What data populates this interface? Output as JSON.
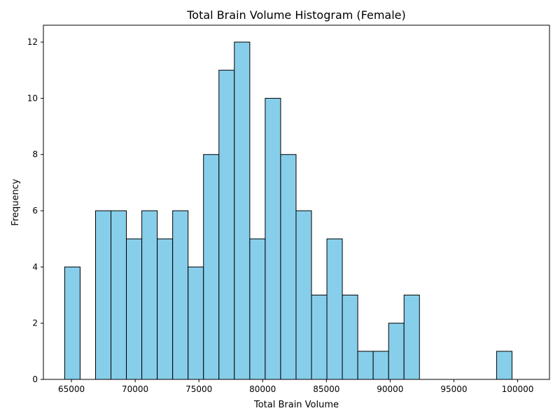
{
  "chart_data": {
    "type": "bar",
    "title": "Total Brain Volume Histogram (Female)",
    "xlabel": "Total Brain Volume",
    "ylabel": "Frequency",
    "xlim": [
      62800,
      102500
    ],
    "ylim": [
      0,
      12.6
    ],
    "x_ticks": [
      65000,
      70000,
      75000,
      80000,
      85000,
      90000,
      95000,
      100000
    ],
    "y_ticks": [
      0,
      2,
      4,
      6,
      8,
      10,
      12
    ],
    "bin_start": 64470,
    "bin_width": 1210,
    "counts": [
      4,
      0,
      6,
      6,
      5,
      6,
      5,
      6,
      4,
      8,
      11,
      12,
      5,
      10,
      8,
      6,
      3,
      5,
      3,
      1,
      1,
      2,
      3,
      0,
      0,
      0,
      0,
      0,
      1
    ],
    "bar_color": "#87ceeb",
    "edge_color": "#000000",
    "grid": false
  }
}
